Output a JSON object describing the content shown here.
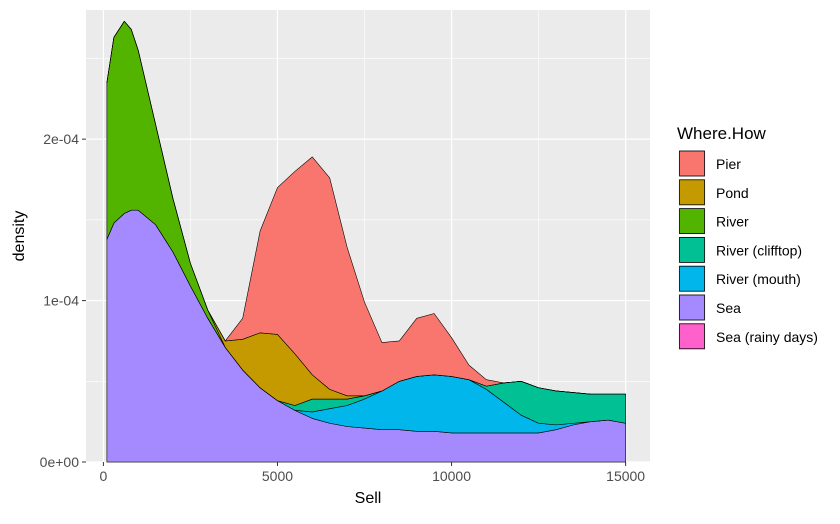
{
  "chart_data": {
    "type": "area",
    "subtype": "stacked-density",
    "title": "",
    "xlabel": "Sell",
    "ylabel": "density",
    "xlim": [
      -500,
      15700
    ],
    "ylim": [
      0,
      0.00028
    ],
    "x_ticks": [
      {
        "value": 0,
        "label": "0"
      },
      {
        "value": 5000,
        "label": "5000"
      },
      {
        "value": 10000,
        "label": "10000"
      },
      {
        "value": 15000,
        "label": "15000"
      }
    ],
    "y_ticks": [
      {
        "value": 0,
        "label": "0e+00"
      },
      {
        "value": 0.0001,
        "label": "1e-04"
      },
      {
        "value": 0.0002,
        "label": "2e-04"
      }
    ],
    "grid": true,
    "legend_position": "right",
    "legend_title": "Where.How",
    "x": [
      100,
      300,
      600,
      800,
      1000,
      1500,
      2000,
      2500,
      3000,
      3500,
      4000,
      4500,
      5000,
      5500,
      6000,
      6500,
      7000,
      7500,
      8000,
      8500,
      9000,
      9500,
      10000,
      10500,
      11000,
      11500,
      12000,
      12500,
      13000,
      13500,
      14000,
      14500,
      15000
    ],
    "series": [
      {
        "name": "Sea (rainy days)",
        "color": "#FF61CC",
        "values": [
          0,
          0,
          0,
          0,
          0,
          0,
          0,
          0,
          0,
          0,
          0,
          0,
          0,
          0,
          0,
          0,
          0,
          0,
          0,
          0,
          0,
          0,
          0,
          0,
          0,
          0,
          0,
          0,
          0,
          0,
          0,
          0,
          0
        ]
      },
      {
        "name": "Sea",
        "color": "#A58AFF",
        "values": [
          0.000138,
          0.000148,
          0.000154,
          0.000156,
          0.000156,
          0.000147,
          0.00013,
          0.000109,
          8.9e-05,
          7.1e-05,
          5.7e-05,
          4.6e-05,
          3.8e-05,
          3.2e-05,
          2.7e-05,
          2.4e-05,
          2.2e-05,
          2.1e-05,
          2e-05,
          2e-05,
          1.9e-05,
          1.9e-05,
          1.8e-05,
          1.8e-05,
          1.8e-05,
          1.8e-05,
          1.8e-05,
          1.8e-05,
          2e-05,
          2.3e-05,
          2.5e-05,
          2.6e-05,
          2.4e-05
        ]
      },
      {
        "name": "River (mouth)",
        "color": "#00B6EB",
        "values": [
          0,
          0,
          0,
          0,
          0,
          0,
          0,
          0,
          0,
          0,
          0,
          0,
          0,
          0,
          4e-06,
          9e-06,
          1.3e-05,
          1.8e-05,
          2.4e-05,
          3e-05,
          3.4e-05,
          3.5e-05,
          3.5e-05,
          3.3e-05,
          2.7e-05,
          1.9e-05,
          1.1e-05,
          6e-06,
          3e-06,
          1e-06,
          0,
          0,
          0
        ]
      },
      {
        "name": "River (clifftop)",
        "color": "#00C094",
        "values": [
          0,
          0,
          0,
          0,
          0,
          0,
          0,
          0,
          0,
          0,
          0,
          0,
          0,
          3e-06,
          8e-06,
          6e-06,
          4e-06,
          2e-06,
          0,
          0,
          0,
          0,
          0,
          0,
          2e-06,
          1.2e-05,
          2.1e-05,
          2.2e-05,
          2.1e-05,
          1.9e-05,
          1.7e-05,
          1.6e-05,
          1.8e-05
        ]
      },
      {
        "name": "River",
        "color": "#53B400",
        "values": [
          9.7e-05,
          0.000115,
          0.000119,
          0.000112,
          9.9e-05,
          6.2e-05,
          3.3e-05,
          1.4e-05,
          5e-06,
          0,
          0,
          0,
          0,
          0,
          0,
          0,
          0,
          0,
          0,
          0,
          0,
          0,
          0,
          0,
          0,
          0,
          0,
          0,
          0,
          0,
          0,
          0,
          0
        ]
      },
      {
        "name": "Pond",
        "color": "#C49A00",
        "values": [
          0,
          0,
          0,
          0,
          0,
          0,
          0,
          0,
          0,
          4e-06,
          1.9e-05,
          3.4e-05,
          4.1e-05,
          3.2e-05,
          1.5e-05,
          6e-06,
          2e-06,
          0,
          0,
          0,
          0,
          0,
          0,
          0,
          0,
          0,
          0,
          0,
          0,
          0,
          0,
          0,
          0
        ]
      },
      {
        "name": "Pier",
        "color": "#F8766D",
        "values": [
          0,
          0,
          0,
          0,
          0,
          0,
          0,
          0,
          0,
          0,
          1.3e-05,
          6.3e-05,
          9.1e-05,
          0.000113,
          0.000135,
          0.000131,
          9.2e-05,
          5.8e-05,
          3e-05,
          2.5e-05,
          3.6e-05,
          3.8e-05,
          2.4e-05,
          9e-06,
          4e-06,
          0,
          0,
          0,
          0,
          0,
          0,
          0,
          0
        ]
      }
    ],
    "legend_order": [
      "Pier",
      "Pond",
      "River",
      "River (clifftop)",
      "River (mouth)",
      "Sea",
      "Sea (rainy days)"
    ]
  }
}
